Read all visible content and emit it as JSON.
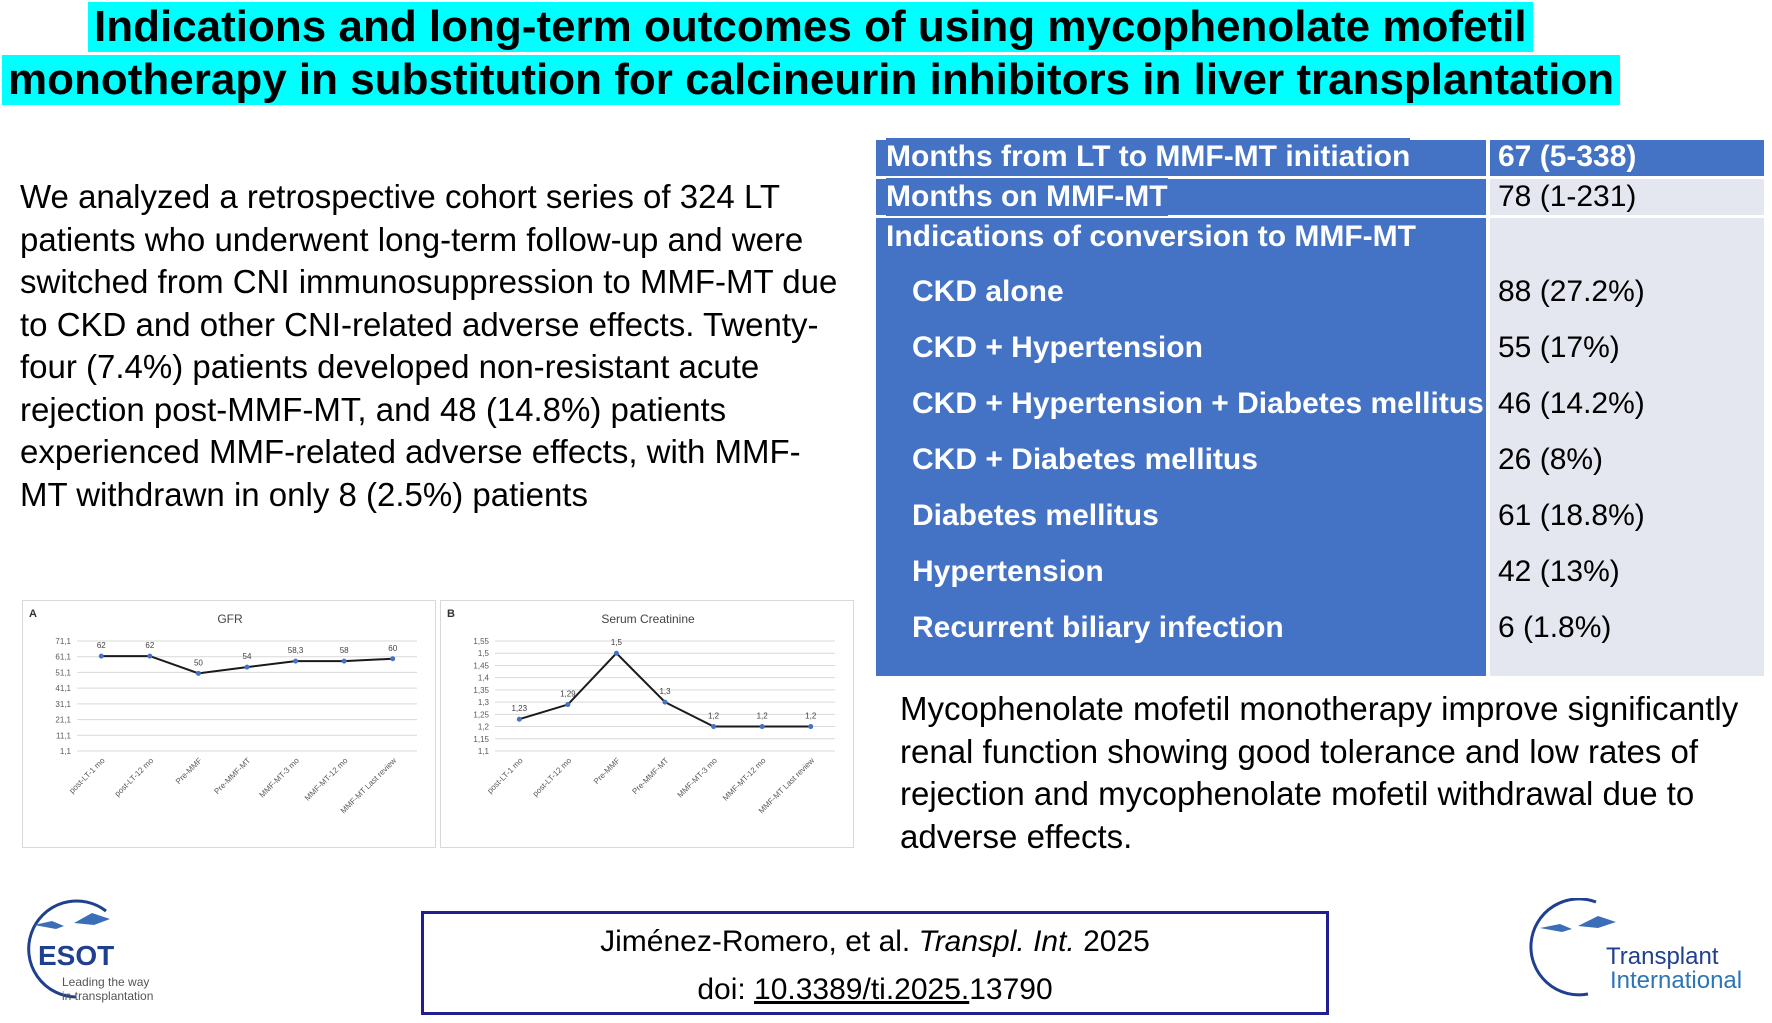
{
  "title": {
    "line1": "Indications and long-term outcomes of using mycophenolate mofetil",
    "line2": "monotherapy in substitution for calcineurin inhibitors in liver transplantation"
  },
  "summary": "We analyzed a retrospective cohort series of 324 LT patients who underwent long-term follow-up and were switched from CNI immunosuppression to MMF-MT due to CKD and other CNI-related adverse effects. Twenty-four (7.4%) patients developed non-resistant acute rejection post-MMF-MT, and 48 (14.8%) patients experienced MMF-related adverse effects, with MMF-MT withdrawn in only 8 (2.5%) patients",
  "table": {
    "months_to_initiation": {
      "label": "Months from LT to MMF-MT initiation",
      "value": "67 (5-338)"
    },
    "months_on": {
      "label": "Months on MMF-MT",
      "value": "78 (1-231)"
    },
    "indications_header": "Indications of conversion to MMF-MT",
    "indications": [
      {
        "label": "CKD alone",
        "value": "88 (27.2%)"
      },
      {
        "label": "CKD + Hypertension",
        "value": "55 (17%)"
      },
      {
        "label": "CKD + Hypertension + Diabetes mellitus",
        "value": "46 (14.2%)"
      },
      {
        "label": "CKD + Diabetes mellitus",
        "value": "26 (8%)"
      },
      {
        "label": "Diabetes mellitus",
        "value": "61 (18.8%)"
      },
      {
        "label": "Hypertension",
        "value": "42 (13%)"
      },
      {
        "label": "Recurrent biliary infection",
        "value": "6 (1.8%)"
      }
    ]
  },
  "conclusion": "Mycophenolate mofetil monotherapy improve significantly renal function showing good tolerance and low rates of rejection and mycophenolate mofetil withdrawal due to adverse effects.",
  "citation": {
    "authors": "Jiménez-Romero, et al.",
    "journal": "Transpl. Int.",
    "year": "2025",
    "doi_prefix": "doi:",
    "doi_link": "10.3389/ti.2025.",
    "doi_suffix": "13790"
  },
  "logos": {
    "esot_name": "ESOT",
    "esot_tagline1": "Leading the way",
    "esot_tagline2": "in transplantation",
    "ti_line1": "Transplant",
    "ti_line2": "International"
  },
  "colors": {
    "title_highlight": "#00ffff",
    "table_blue": "#4472c4",
    "table_light": "#e4e7ef",
    "citation_border": "#1f1f8f"
  },
  "chart_data": [
    {
      "panel": "A",
      "type": "line",
      "title": "GFR",
      "categories": [
        "post-LT-1 mo",
        "post-LT-12 mo",
        "Pre-MMF",
        "Pre-MMF-MT",
        "MMF-MT-3 mo",
        "MMF-MT-12 mo",
        "MMF-MT Last review"
      ],
      "values": [
        61.5,
        61.5,
        50.5,
        54.5,
        58.3,
        58.3,
        59.8
      ],
      "data_labels": [
        "62",
        "62",
        "50",
        "54",
        "58,3",
        "58",
        "60"
      ],
      "yticks": [
        "1,1",
        "11,1",
        "21,1",
        "31,1",
        "41,1",
        "51,1",
        "61,1",
        "71,1"
      ],
      "ylim": [
        1.1,
        71.1
      ],
      "grid": true
    },
    {
      "panel": "B",
      "type": "line",
      "title": "Serum Creatinine",
      "categories": [
        "post-LT-1 mo",
        "post-LT-12 mo",
        "Pre-MMF",
        "Pre-MMF-MT",
        "MMF-MT-3 mo",
        "MMF-MT-12 mo",
        "MMF-MT Last review"
      ],
      "values": [
        1.23,
        1.29,
        1.5,
        1.3,
        1.2,
        1.2,
        1.2
      ],
      "data_labels": [
        "1,23",
        "1,29",
        "1,5",
        "1,3",
        "1,2",
        "1,2",
        "1,2"
      ],
      "yticks": [
        "1,1",
        "1,15",
        "1,2",
        "1,25",
        "1,3",
        "1,35",
        "1,4",
        "1,45",
        "1,5",
        "1,55"
      ],
      "ylim": [
        1.1,
        1.55
      ],
      "grid": true
    }
  ]
}
